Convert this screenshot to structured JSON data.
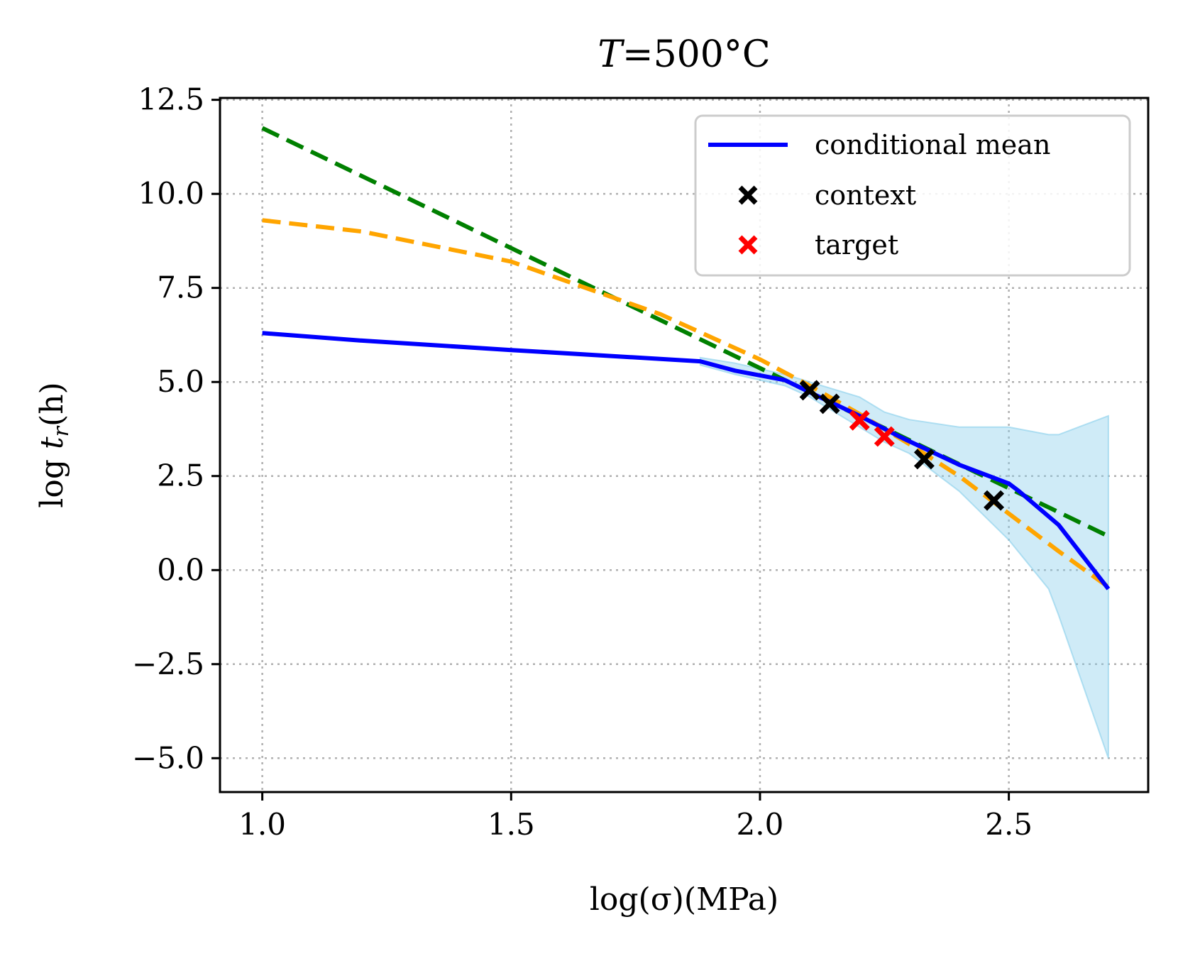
{
  "chart_data": {
    "type": "line",
    "title": "T=500°C",
    "xlabel": "log(σ)(MPa)",
    "ylabel": "log t_r(h)",
    "xlim": [
      0.915,
      2.78
    ],
    "ylim": [
      -5.9,
      12.55
    ],
    "x_ticks": [
      1.0,
      1.5,
      2.0,
      2.5
    ],
    "x_tick_labels": [
      "1.0",
      "1.5",
      "2.0",
      "2.5"
    ],
    "y_ticks": [
      12.5,
      10.0,
      7.5,
      5.0,
      2.5,
      0.0,
      -2.5,
      -5.0
    ],
    "y_tick_labels": [
      "12.5",
      "10.0",
      "7.5",
      "5.0",
      "2.5",
      "0.0",
      "−2.5",
      "−5.0"
    ],
    "grid": true,
    "legend_position": "top-right",
    "legend": [
      {
        "label": "conditional mean",
        "marker": "line",
        "color": "#0000ff"
      },
      {
        "label": "context",
        "marker": "x",
        "color": "#000000"
      },
      {
        "label": "target",
        "marker": "x",
        "color": "#ff0000"
      }
    ],
    "series": [
      {
        "name": "conditional mean",
        "kind": "line",
        "color": "#0000ff",
        "x": [
          1.0,
          1.2,
          1.5,
          1.88,
          1.95,
          2.05,
          2.12,
          2.2,
          2.28,
          2.4,
          2.5,
          2.52,
          2.6,
          2.7
        ],
        "y": [
          6.3,
          6.1,
          5.85,
          5.55,
          5.3,
          5.05,
          4.6,
          4.1,
          3.55,
          2.8,
          2.3,
          2.1,
          1.2,
          -0.5
        ]
      },
      {
        "kind": "band",
        "color": "#87ceeb",
        "opacity": 0.4,
        "x": [
          1.88,
          1.95,
          2.05,
          2.1,
          2.2,
          2.25,
          2.3,
          2.4,
          2.5,
          2.58,
          2.6,
          2.7
        ],
        "upper": [
          5.65,
          5.5,
          5.2,
          5.0,
          4.6,
          4.2,
          4.0,
          3.8,
          3.8,
          3.6,
          3.6,
          4.1
        ],
        "lower": [
          5.45,
          5.2,
          4.9,
          4.6,
          3.8,
          3.4,
          3.1,
          2.1,
          0.8,
          -0.5,
          -1.2,
          -5.0
        ]
      },
      {
        "kind": "dashed-line",
        "color": "#008000",
        "x": [
          1.0,
          2.7
        ],
        "y": [
          11.75,
          0.9
        ]
      },
      {
        "kind": "dashed-line",
        "color": "#ffa500",
        "x": [
          1.0,
          1.2,
          1.5,
          1.8,
          2.0,
          2.1,
          2.2,
          2.3,
          2.4,
          2.5,
          2.6,
          2.7
        ],
        "y": [
          9.3,
          9.0,
          8.2,
          6.8,
          5.6,
          4.9,
          4.15,
          3.35,
          2.5,
          1.5,
          0.5,
          -0.45
        ]
      },
      {
        "name": "context",
        "kind": "scatter-x",
        "color": "#000000",
        "x": [
          2.1,
          2.14,
          2.33,
          2.47
        ],
        "y": [
          4.78,
          4.42,
          2.95,
          1.85
        ]
      },
      {
        "name": "target",
        "kind": "scatter-x",
        "color": "#ff0000",
        "x": [
          2.2,
          2.25
        ],
        "y": [
          3.98,
          3.55
        ]
      }
    ]
  }
}
